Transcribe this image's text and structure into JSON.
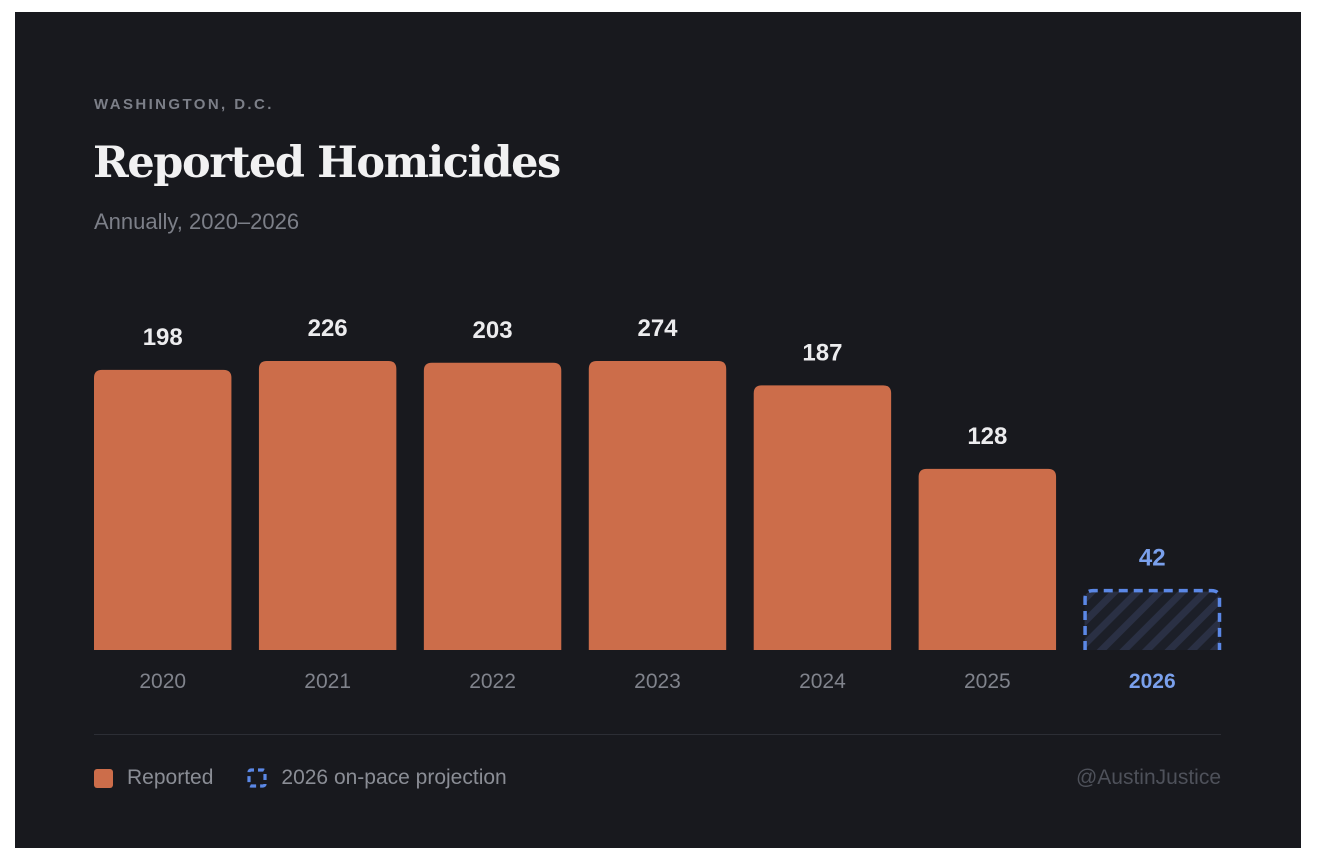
{
  "header": {
    "eyebrow": "WASHINGTON, D.C.",
    "title": "Reported Homicides",
    "subtitle": "Annually, 2020–2026"
  },
  "colors": {
    "background": "#18191e",
    "reported": "#cc6d4a",
    "projection": "#5b88e6",
    "projection_label": "#7aa0ec",
    "projection_fill": "#262b3a",
    "value_label": "#ececee",
    "category_label": "#80838c"
  },
  "legend": {
    "items": [
      {
        "label": "Reported",
        "icon": "solid-square-swatch"
      },
      {
        "label": "2026 on-pace projection",
        "icon": "dashed-square-swatch"
      }
    ]
  },
  "credit": "@AustinJustice",
  "chart_data": {
    "type": "bar",
    "title": "Reported Homicides",
    "subtitle": "Annually, 2020–2026",
    "xlabel": "",
    "ylabel": "",
    "grid": false,
    "legend_position": "bottom-left",
    "categories": [
      "2020",
      "2021",
      "2022",
      "2023",
      "2024",
      "2025",
      "2026"
    ],
    "series": [
      {
        "name": "Reported",
        "values": [
          198,
          226,
          203,
          274,
          187,
          128,
          null
        ]
      },
      {
        "name": "2026 on-pace projection",
        "values": [
          null,
          null,
          null,
          null,
          null,
          null,
          42
        ]
      }
    ],
    "values": [
      198,
      226,
      203,
      274,
      187,
      128,
      42
    ],
    "projected": [
      false,
      false,
      false,
      false,
      false,
      false,
      true
    ],
    "data_labels": [
      "198",
      "226",
      "203",
      "274",
      "187",
      "128",
      "42"
    ]
  }
}
